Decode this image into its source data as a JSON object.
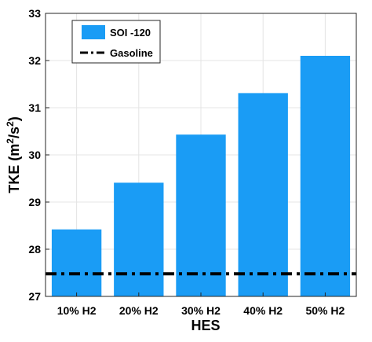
{
  "chart_data": {
    "type": "bar",
    "categories": [
      "10% H2",
      "20% H2",
      "30% H2",
      "40% H2",
      "50% H2"
    ],
    "series": [
      {
        "name": "SOI -120",
        "values": [
          28.42,
          29.41,
          30.43,
          31.31,
          32.1
        ]
      }
    ],
    "reference_lines": [
      {
        "name": "Gasoline",
        "value": 27.48,
        "style": "dash-dot"
      }
    ],
    "xlabel": "HES",
    "ylabel": "TKE",
    "ylabel_unit": "m",
    "ylabel_sup1": "2",
    "ylabel_slash": "/s",
    "ylabel_sup2": "2",
    "ylim": [
      27,
      33
    ],
    "yticks": [
      "27",
      "28",
      "29",
      "30",
      "31",
      "32",
      "33"
    ],
    "grid": "both",
    "legend_position": "top-left",
    "colors": {
      "bar": "#1a9cf5",
      "reference": "#000000",
      "grid": "#e4e4e4",
      "axis": "#262626"
    }
  }
}
